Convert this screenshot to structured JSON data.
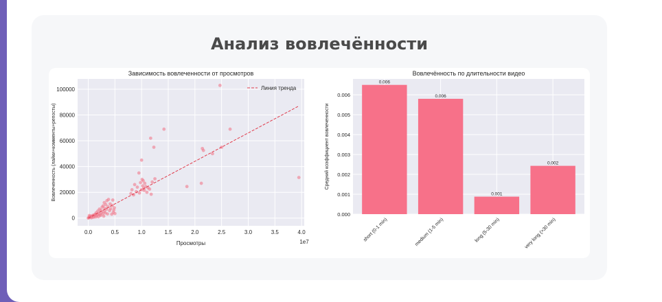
{
  "page": {
    "title": "Анализ вовлечённости"
  },
  "chart_data": [
    {
      "type": "scatter",
      "title": "Зависимость вовлеченности от просмотров",
      "xlabel": "Просмотры",
      "ylabel": "Вовлеченность (лайки+комменты+репосты)",
      "x_offset_label": "1e7",
      "xlim": [
        -0.2,
        4.05
      ],
      "ylim": [
        -6000,
        108000
      ],
      "xticks": [
        0.0,
        0.5,
        1.0,
        1.5,
        2.0,
        2.5,
        3.0,
        3.5,
        4.0
      ],
      "xtick_labels": [
        "0.0",
        "0.5",
        "1.0",
        "1.5",
        "2.0",
        "2.5",
        "3.0",
        "3.5",
        "4.0"
      ],
      "yticks": [
        0,
        20000,
        40000,
        60000,
        80000,
        100000
      ],
      "ytick_labels": [
        "0",
        "20000",
        "40000",
        "60000",
        "80000",
        "100000"
      ],
      "grid": true,
      "legend": {
        "position": "top-right",
        "entries": [
          "Линия тренда"
        ]
      },
      "trend_line": {
        "label": "Линия тренда",
        "from": [
          0.0,
          0
        ],
        "to": [
          3.95,
          87000
        ],
        "color": "#e03a4a"
      },
      "point_color": "#f07a8c",
      "points": [
        [
          0.0,
          0
        ],
        [
          0.01,
          300
        ],
        [
          0.02,
          800
        ],
        [
          0.03,
          500
        ],
        [
          0.05,
          1200
        ],
        [
          0.06,
          200
        ],
        [
          0.08,
          1800
        ],
        [
          0.1,
          600
        ],
        [
          0.12,
          2500
        ],
        [
          0.02,
          2000
        ],
        [
          0.04,
          1500
        ],
        [
          0.07,
          900
        ],
        [
          0.09,
          2200
        ],
        [
          0.11,
          1400
        ],
        [
          0.13,
          3000
        ],
        [
          0.15,
          4200
        ],
        [
          0.16,
          1800
        ],
        [
          0.18,
          5500
        ],
        [
          0.2,
          3500
        ],
        [
          0.21,
          7000
        ],
        [
          0.22,
          2600
        ],
        [
          0.24,
          6000
        ],
        [
          0.25,
          4500
        ],
        [
          0.26,
          8500
        ],
        [
          0.27,
          3300
        ],
        [
          0.28,
          9500
        ],
        [
          0.3,
          5200
        ],
        [
          0.3,
          12000
        ],
        [
          0.31,
          7500
        ],
        [
          0.32,
          4000
        ],
        [
          0.33,
          10500
        ],
        [
          0.34,
          6800
        ],
        [
          0.35,
          13500
        ],
        [
          0.36,
          3200
        ],
        [
          0.37,
          8800
        ],
        [
          0.38,
          14500
        ],
        [
          0.4,
          5800
        ],
        [
          0.41,
          11000
        ],
        [
          0.42,
          7300
        ],
        [
          0.44,
          3000
        ],
        [
          0.45,
          9800
        ],
        [
          0.46,
          14000
        ],
        [
          0.47,
          4500
        ],
        [
          0.48,
          6200
        ],
        [
          0.5,
          3500
        ],
        [
          0.49,
          8000
        ],
        [
          0.19,
          1000
        ],
        [
          0.23,
          2000
        ],
        [
          0.29,
          1500
        ],
        [
          0.14,
          900
        ],
        [
          0.17,
          2800
        ],
        [
          0.8,
          19000
        ],
        [
          0.82,
          22000
        ],
        [
          0.85,
          18000
        ],
        [
          0.87,
          26000
        ],
        [
          0.9,
          20500
        ],
        [
          0.92,
          24000
        ],
        [
          0.95,
          35000
        ],
        [
          0.96,
          19500
        ],
        [
          0.98,
          27500
        ],
        [
          1.0,
          22000
        ],
        [
          1.0,
          45000
        ],
        [
          1.01,
          30000
        ],
        [
          1.02,
          25000
        ],
        [
          1.03,
          29000
        ],
        [
          1.04,
          23000
        ],
        [
          1.05,
          21500
        ],
        [
          1.06,
          27000
        ],
        [
          1.08,
          24500
        ],
        [
          1.1,
          20000
        ],
        [
          1.12,
          23500
        ],
        [
          1.15,
          22500
        ],
        [
          1.18,
          18500
        ],
        [
          1.2,
          28000
        ],
        [
          1.25,
          30500
        ],
        [
          1.17,
          62000
        ],
        [
          1.23,
          55000
        ],
        [
          1.42,
          69000
        ],
        [
          1.85,
          24500
        ],
        [
          2.12,
          27000
        ],
        [
          2.14,
          54000
        ],
        [
          2.16,
          52500
        ],
        [
          2.33,
          50000
        ],
        [
          2.47,
          103000
        ],
        [
          2.5,
          55000
        ],
        [
          2.66,
          69000
        ],
        [
          3.95,
          31500
        ]
      ]
    },
    {
      "type": "bar",
      "title": "Вовлечённость по длительности видео",
      "xlabel": "",
      "ylabel": "Средний коэффициент вовлеченности",
      "ylim": [
        0,
        0.0068
      ],
      "yticks": [
        0,
        0.001,
        0.002,
        0.003,
        0.004,
        0.005,
        0.006
      ],
      "ytick_labels": [
        "0.000",
        "0.001",
        "0.002",
        "0.003",
        "0.004",
        "0.005",
        "0.006"
      ],
      "grid": true,
      "bar_color": "#f77189",
      "categories": [
        "short (0-1 min)",
        "medium (1-5 min)",
        "long (5-30 min)",
        "very long (>30 min)"
      ],
      "values": [
        0.0065,
        0.0058,
        0.00088,
        0.00243
      ],
      "value_labels": [
        "0.006",
        "0.006",
        "0.001",
        "0.002"
      ]
    }
  ]
}
